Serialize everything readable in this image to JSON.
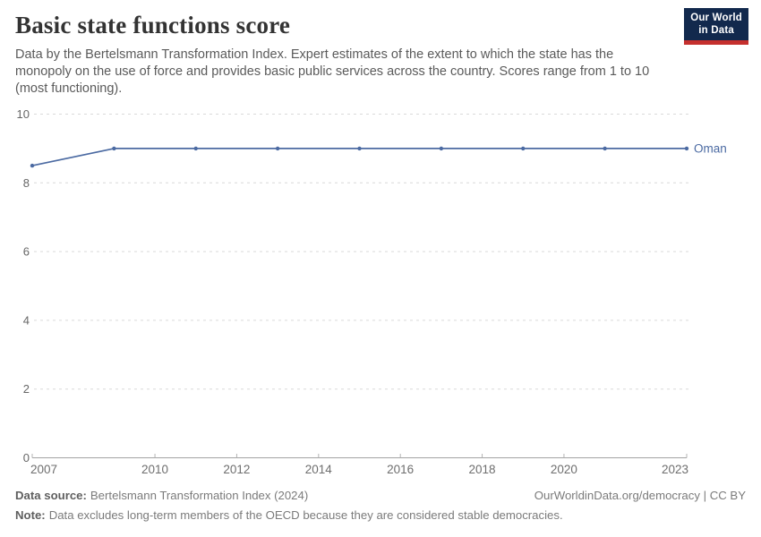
{
  "header": {
    "title": "Basic state functions score",
    "subtitle": "Data by the Bertelsmann Transformation Index. Expert estimates of the extent to which the state has the monopoly on the use of force and provides basic public services across the country. Scores range from 1 to 10 (most functioning).",
    "logo": {
      "line1": "Our World",
      "line2": "in Data"
    }
  },
  "chart_data": {
    "type": "line",
    "title": "Basic state functions score",
    "series": [
      {
        "name": "Oman",
        "color": "#4b6aa2",
        "x": [
          2007,
          2009,
          2011,
          2013,
          2015,
          2017,
          2019,
          2021,
          2023
        ],
        "values": [
          8.5,
          9,
          9,
          9,
          9,
          9,
          9,
          9,
          9
        ]
      }
    ],
    "xlabel": "",
    "ylabel": "",
    "xlim": [
      2007,
      2023
    ],
    "ylim": [
      0,
      10
    ],
    "x_ticks": [
      2007,
      2010,
      2012,
      2014,
      2016,
      2018,
      2020,
      2023
    ],
    "y_ticks": [
      0,
      2,
      4,
      6,
      8,
      10
    ],
    "grid": "horizontal-dashed",
    "legend_position": "end-of-line-label",
    "colors": {
      "gridline": "#d9d9d9",
      "axis": "#a3a3a3",
      "tick": "#b3b3b3"
    }
  },
  "footer": {
    "source_label": "Data source:",
    "source_text": "Bertelsmann Transformation Index (2024)",
    "link": "OurWorldinData.org/democracy | CC BY",
    "note_label": "Note:",
    "note_text": "Data excludes long-term members of the OECD because they are considered stable democracies."
  }
}
